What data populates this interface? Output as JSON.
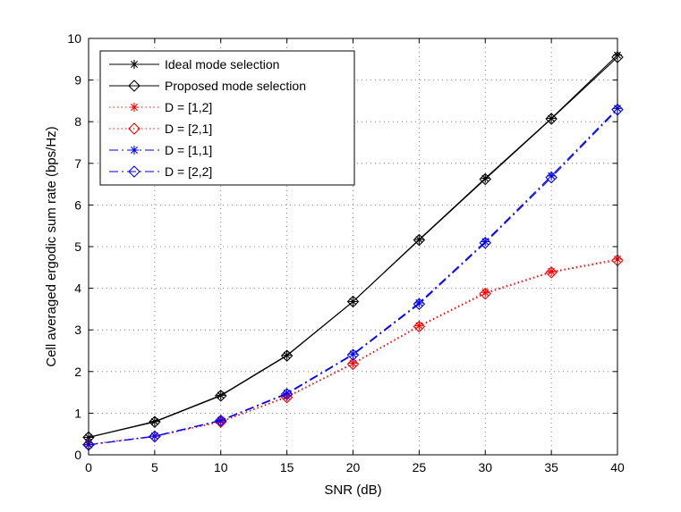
{
  "chart_data": {
    "type": "line",
    "title": "",
    "xlabel": "SNR (dB)",
    "ylabel": "Cell averaged ergodic sum rate (bps/Hz)",
    "xlim": [
      0,
      40
    ],
    "ylim": [
      0,
      10
    ],
    "xticks": [
      0,
      5,
      10,
      15,
      20,
      25,
      30,
      35,
      40
    ],
    "yticks": [
      0,
      1,
      2,
      3,
      4,
      5,
      6,
      7,
      8,
      9,
      10
    ],
    "grid": true,
    "legend_position": "top-left",
    "x": [
      0,
      5,
      10,
      15,
      20,
      25,
      30,
      35,
      40
    ],
    "series": [
      {
        "name": "Ideal mode selection",
        "values": [
          0.42,
          0.8,
          1.43,
          2.39,
          3.68,
          5.17,
          6.64,
          8.08,
          9.6
        ],
        "color": "#000000",
        "line": "solid",
        "marker": "star"
      },
      {
        "name": "Proposed mode selection",
        "values": [
          0.42,
          0.79,
          1.42,
          2.38,
          3.68,
          5.16,
          6.62,
          8.07,
          9.55
        ],
        "color": "#000000",
        "line": "solid",
        "marker": "diamond"
      },
      {
        "name": "D = [1,2]",
        "values": [
          0.25,
          0.45,
          0.8,
          1.4,
          2.2,
          3.1,
          3.9,
          4.4,
          4.7
        ],
        "color": "#ff0000",
        "line": "dotted",
        "marker": "star"
      },
      {
        "name": "D = [2,1]",
        "values": [
          0.25,
          0.44,
          0.79,
          1.38,
          2.18,
          3.08,
          3.87,
          4.38,
          4.67
        ],
        "color": "#ff0000",
        "line": "dotted",
        "marker": "diamond"
      },
      {
        "name": "D = [1,1]",
        "values": [
          0.24,
          0.45,
          0.83,
          1.48,
          2.42,
          3.65,
          5.12,
          6.7,
          8.32
        ],
        "color": "#0000ff",
        "line": "dashdot",
        "marker": "star"
      },
      {
        "name": "D = [2,2]",
        "values": [
          0.24,
          0.44,
          0.82,
          1.46,
          2.4,
          3.62,
          5.09,
          6.66,
          8.29
        ],
        "color": "#0000ff",
        "line": "dashdot",
        "marker": "diamond"
      }
    ]
  }
}
